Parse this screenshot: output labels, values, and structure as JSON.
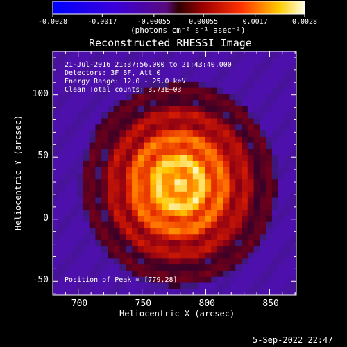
{
  "colorbar": {
    "tick_labels": [
      "-0.0028",
      "-0.0017",
      "-0.00055",
      "0.00055",
      "0.0017",
      "0.0028"
    ],
    "units_label": "(photons cm⁻² s⁻¹ asec⁻²)",
    "min": -0.0028,
    "max": 0.0028,
    "colors": [
      "#0000ff",
      "#7f00ff",
      "#ffffff",
      "#ff0000",
      "#ffff00",
      "#ffffff"
    ]
  },
  "image": {
    "title": "Reconstructed RHESSI Image",
    "annotation_lines": [
      "21-Jul-2016 21:37:56.000 to 21:43:40.000",
      "Detectors: 3F 8F, Att 0",
      "Energy Range: 12.0 - 25.0 keV",
      "Clean     Total counts: 3.73E+03"
    ],
    "peak_label": "Position of Peak = [779,28]",
    "peak": [
      779,
      28
    ]
  },
  "chart_data": {
    "type": "heatmap",
    "title": "Reconstructed RHESSI Image",
    "xlabel": "Heliocentric X (arcsec)",
    "ylabel": "Heliocentric Y (arcsec)",
    "xlim": [
      680,
      871
    ],
    "ylim": [
      -61,
      135
    ],
    "x_ticks": [
      700,
      750,
      800,
      850
    ],
    "y_ticks": [
      -50,
      0,
      50,
      100
    ],
    "x_tick_labels": [
      "700",
      "750",
      "800",
      "850"
    ],
    "y_tick_labels": [
      "-50",
      "0",
      "50",
      "100"
    ],
    "peak_position": [
      779,
      28
    ]
  },
  "footer": {
    "timestamp": "5-Sep-2022 22:47"
  }
}
